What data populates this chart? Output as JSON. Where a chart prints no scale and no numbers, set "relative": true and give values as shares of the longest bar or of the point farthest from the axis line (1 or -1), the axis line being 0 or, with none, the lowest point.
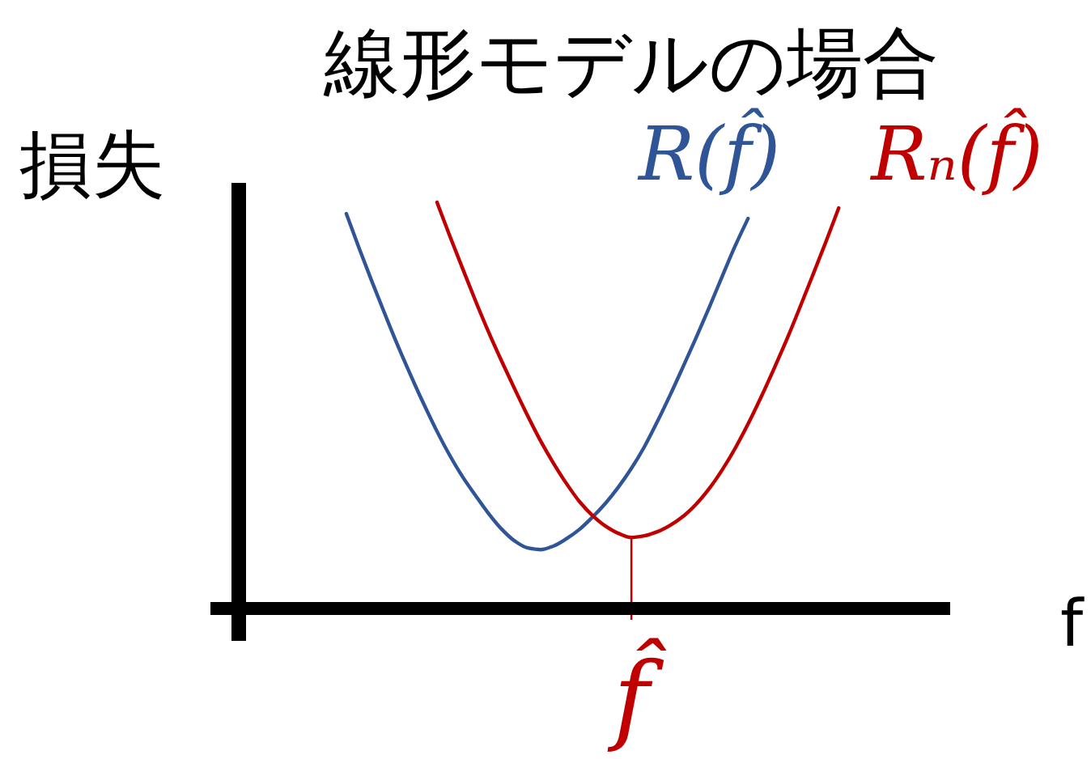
{
  "chart_data": {
    "type": "line",
    "title": "線形モデルの場合",
    "xlabel": "f",
    "ylabel": "損失",
    "relative": true,
    "line_style": "solid",
    "categories": [
      null,
      null,
      null,
      null,
      null,
      null,
      null,
      null,
      null,
      null,
      null,
      null,
      null,
      null,
      null,
      null,
      null,
      null,
      null,
      null,
      null,
      null,
      null,
      null,
      null,
      null,
      null,
      null,
      null,
      null,
      null,
      null,
      null,
      null,
      null,
      null,
      null,
      null,
      null
    ],
    "series": [
      {
        "name": "R(f̂)",
        "color": "#2f5597",
        "values": [
          0.972,
          0.886,
          0.803,
          0.723,
          0.645,
          0.572,
          0.502,
          0.436,
          0.376,
          0.323,
          0.277,
          0.233,
          0.195,
          0.166,
          0.149,
          0.145,
          0.154,
          0.172,
          0.195,
          0.225,
          0.259,
          0.299,
          0.345,
          0.398,
          0.46,
          0.526,
          0.596,
          0.667,
          0.741,
          0.817,
          0.892,
          0.96,
          null,
          null,
          null,
          null,
          null,
          null,
          null
        ]
      },
      {
        "name": "Rₙ(f̂)",
        "color": "#c00000",
        "values": [
          null,
          null,
          null,
          null,
          null,
          null,
          null,
          1,
          0.916,
          0.835,
          0.755,
          0.679,
          0.608,
          0.54,
          0.474,
          0.412,
          0.357,
          0.307,
          0.263,
          0.229,
          0.203,
          0.185,
          0.175,
          0.179,
          0.189,
          0.205,
          0.227,
          0.257,
          0.295,
          0.341,
          0.394,
          0.454,
          0.52,
          0.59,
          0.663,
          0.741,
          0.821,
          0.902,
          0.986
        ]
      }
    ],
    "annotations": [
      "f̂"
    ]
  }
}
